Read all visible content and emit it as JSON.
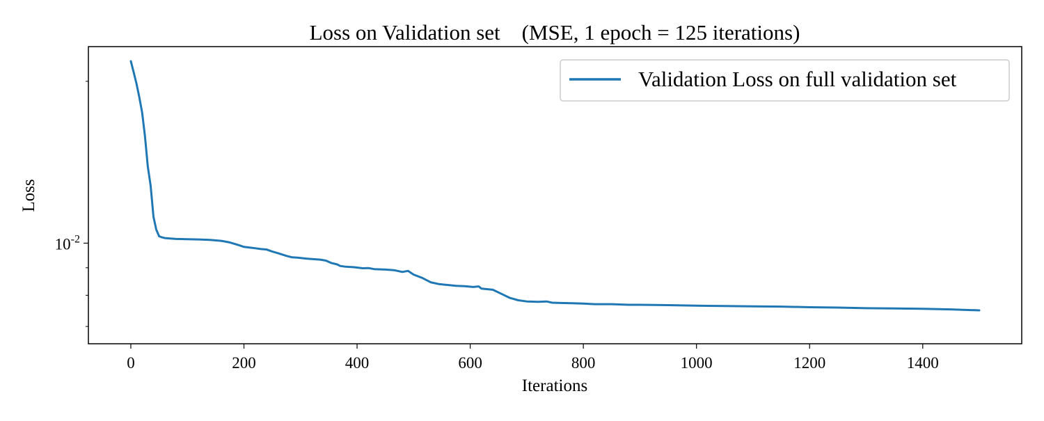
{
  "chart_data": {
    "type": "line",
    "title": "Loss on Validation set    (MSE, 1 epoch = 125 iterations)",
    "xlabel": "Iterations",
    "ylabel": "Loss",
    "y_scale": "log",
    "xlim": [
      -75,
      1575
    ],
    "ylim": [
      0.0065,
      0.0232
    ],
    "x_ticks": [
      0,
      200,
      400,
      600,
      800,
      1000,
      1200,
      1400
    ],
    "y_major_ticks": [
      {
        "value": 0.01,
        "base": "10",
        "exponent": "-2"
      }
    ],
    "y_minor_ticks": [
      0.007,
      0.008,
      0.009,
      0.02
    ],
    "grid": false,
    "legend_position": "top-right",
    "colors": {
      "series": "#1f77b4"
    },
    "series": [
      {
        "name": "Validation Loss on full validation set",
        "points": [
          [
            0,
            0.0218
          ],
          [
            5,
            0.0208
          ],
          [
            10,
            0.0198
          ],
          [
            15,
            0.0187
          ],
          [
            20,
            0.0175
          ],
          [
            25,
            0.0158
          ],
          [
            30,
            0.0139
          ],
          [
            35,
            0.0128
          ],
          [
            40,
            0.0112
          ],
          [
            45,
            0.0106
          ],
          [
            50,
            0.0103
          ],
          [
            55,
            0.01025
          ],
          [
            60,
            0.01022
          ],
          [
            70,
            0.0102
          ],
          [
            80,
            0.01018
          ],
          [
            100,
            0.01017
          ],
          [
            120,
            0.01016
          ],
          [
            140,
            0.01014
          ],
          [
            160,
            0.0101
          ],
          [
            175,
            0.01003
          ],
          [
            190,
            0.00992
          ],
          [
            200,
            0.00984
          ],
          [
            215,
            0.0098
          ],
          [
            230,
            0.00975
          ],
          [
            240,
            0.00973
          ],
          [
            250,
            0.00965
          ],
          [
            260,
            0.00958
          ],
          [
            275,
            0.00947
          ],
          [
            285,
            0.00941
          ],
          [
            295,
            0.0094
          ],
          [
            310,
            0.00936
          ],
          [
            320,
            0.00934
          ],
          [
            335,
            0.00932
          ],
          [
            345,
            0.00928
          ],
          [
            355,
            0.00918
          ],
          [
            365,
            0.00913
          ],
          [
            370,
            0.00907
          ],
          [
            380,
            0.00904
          ],
          [
            395,
            0.00902
          ],
          [
            410,
            0.00898
          ],
          [
            420,
            0.00899
          ],
          [
            430,
            0.00895
          ],
          [
            450,
            0.00893
          ],
          [
            465,
            0.00891
          ],
          [
            480,
            0.00884
          ],
          [
            490,
            0.00888
          ],
          [
            500,
            0.00874
          ],
          [
            515,
            0.00862
          ],
          [
            530,
            0.00846
          ],
          [
            545,
            0.00839
          ],
          [
            560,
            0.00836
          ],
          [
            575,
            0.00833
          ],
          [
            590,
            0.00832
          ],
          [
            605,
            0.00829
          ],
          [
            615,
            0.00831
          ],
          [
            620,
            0.00823
          ],
          [
            640,
            0.00819
          ],
          [
            655,
            0.00805
          ],
          [
            670,
            0.00791
          ],
          [
            685,
            0.00783
          ],
          [
            700,
            0.00779
          ],
          [
            720,
            0.00778
          ],
          [
            735,
            0.00779
          ],
          [
            745,
            0.00775
          ],
          [
            760,
            0.00774
          ],
          [
            780,
            0.00773
          ],
          [
            800,
            0.00772
          ],
          [
            820,
            0.0077
          ],
          [
            850,
            0.0077
          ],
          [
            880,
            0.00768
          ],
          [
            900,
            0.00768
          ],
          [
            950,
            0.00767
          ],
          [
            1000,
            0.00765
          ],
          [
            1050,
            0.00764
          ],
          [
            1100,
            0.00763
          ],
          [
            1150,
            0.00762
          ],
          [
            1200,
            0.0076
          ],
          [
            1250,
            0.00759
          ],
          [
            1300,
            0.00757
          ],
          [
            1350,
            0.00756
          ],
          [
            1400,
            0.00755
          ],
          [
            1450,
            0.00753
          ],
          [
            1500,
            0.0075
          ]
        ]
      }
    ]
  }
}
